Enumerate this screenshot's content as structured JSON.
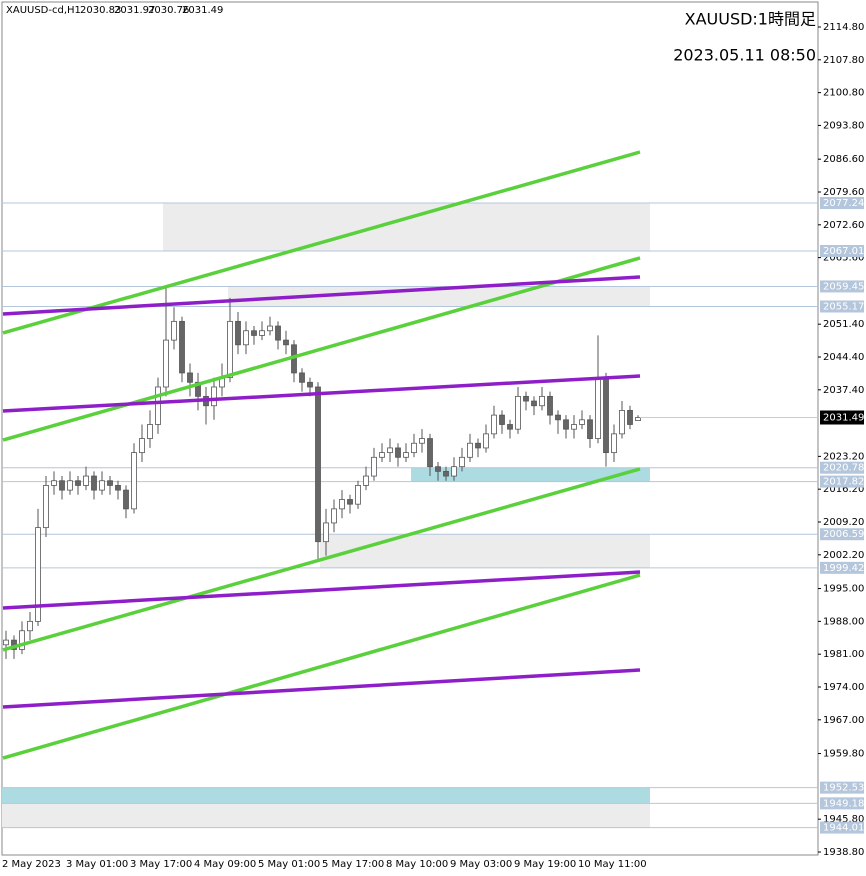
{
  "chart_data": {
    "type": "candlestick",
    "symbol": "XAUUSD-cd,H1",
    "title": "XAUUSD:1時間足",
    "subtitle": "2023.05.11 08:50",
    "categories": [
      "2 May 2023",
      null,
      null,
      null,
      null,
      null,
      null,
      null,
      "3 May 01:00",
      null,
      null,
      null,
      null,
      null,
      null,
      null,
      "3 May 17:00",
      null,
      null,
      null,
      null,
      null,
      null,
      null,
      "4 May 09:00",
      null,
      null,
      null,
      null,
      null,
      null,
      null,
      "5 May 01:00",
      null,
      null,
      null,
      null,
      null,
      null,
      null,
      "5 May 17:00",
      null,
      null,
      null,
      null,
      null,
      null,
      null,
      "8 May 10:00",
      null,
      null,
      null,
      null,
      null,
      null,
      null,
      "9 May 03:00",
      null,
      null,
      null,
      null,
      null,
      null,
      null,
      "9 May 19:00",
      null,
      null,
      null,
      null,
      null,
      null,
      null,
      "10 May 11:00",
      null,
      null,
      null,
      null,
      null,
      null,
      null
    ],
    "open": [
      1983,
      1984,
      1982,
      1986,
      1988,
      2008,
      2017,
      2018,
      2016,
      2018,
      2017,
      2019,
      2016,
      2018,
      2017,
      2016,
      2012,
      2024,
      2027,
      2030,
      2038,
      2048,
      2052,
      2041,
      2039,
      2036,
      2034,
      2038,
      2040,
      2052,
      2047,
      2050,
      2049,
      2050,
      2051,
      2048,
      2047,
      2041,
      2039,
      2038,
      2005,
      2009,
      2012,
      2014,
      2013,
      2017,
      2019,
      2023,
      2024,
      2025,
      2023,
      2024,
      2026,
      2027,
      2021,
      2020,
      2019,
      2021,
      2023,
      2026,
      2025,
      2028,
      2032,
      2030,
      2029,
      2036,
      2035,
      2034,
      2036,
      2032,
      2031,
      2029,
      2030,
      2031,
      2027,
      2040,
      2024,
      2028,
      2033,
      2030.83
    ],
    "high": [
      1986,
      1985,
      1988,
      1990,
      2012,
      2019,
      2020,
      2019,
      2020,
      2019,
      2021,
      2020,
      2020,
      2019,
      2018,
      2017,
      2026,
      2030,
      2033,
      2040,
      2059,
      2055,
      2053,
      2043,
      2041,
      2038,
      2040,
      2043,
      2057,
      2054,
      2052,
      2051,
      2052,
      2053,
      2052,
      2050,
      2048,
      2042,
      2040,
      2039,
      2012,
      2014,
      2016,
      2015,
      2018,
      2021,
      2025,
      2026,
      2027,
      2026,
      2026,
      2028,
      2029,
      2028,
      2022,
      2021,
      2023,
      2025,
      2028,
      2027,
      2030,
      2034,
      2033,
      2031,
      2038,
      2037,
      2036,
      2038,
      2037,
      2033,
      2032,
      2032,
      2033,
      2032,
      2049,
      2041,
      2030,
      2035,
      2034,
      2031.97
    ],
    "low": [
      1980,
      1980,
      1981,
      1984,
      1987,
      2006,
      2015,
      2014,
      2015,
      2015,
      2016,
      2014,
      2015,
      2015,
      2014,
      2010,
      2011,
      2022,
      2025,
      2028,
      2036,
      2046,
      2039,
      2036,
      2033,
      2030,
      2031,
      2036,
      2039,
      2045,
      2045,
      2047,
      2048,
      2049,
      2046,
      2045,
      2039,
      2037,
      2036,
      2001,
      2002,
      2007,
      2010,
      2011,
      2012,
      2016,
      2018,
      2022,
      2022,
      2021,
      2022,
      2023,
      2024,
      2019,
      2018,
      2018,
      2018,
      2020,
      2022,
      2023,
      2024,
      2027,
      2028,
      2027,
      2028,
      2033,
      2032,
      2033,
      2030,
      2028,
      2027,
      2027,
      2029,
      2025,
      2026,
      2021,
      2022,
      2027,
      2029,
      2030.76
    ],
    "close": [
      1984,
      1982,
      1986,
      1988,
      2008,
      2017,
      2018,
      2016,
      2018,
      2017,
      2019,
      2016,
      2018,
      2017,
      2016,
      2012,
      2024,
      2027,
      2030,
      2038,
      2048,
      2052,
      2041,
      2039,
      2036,
      2034,
      2038,
      2040,
      2052,
      2047,
      2050,
      2049,
      2050,
      2051,
      2048,
      2047,
      2041,
      2039,
      2038,
      2005,
      2009,
      2012,
      2014,
      2013,
      2017,
      2019,
      2023,
      2024,
      2025,
      2023,
      2024,
      2026,
      2027,
      2021,
      2020,
      2019,
      2021,
      2023,
      2026,
      2025,
      2028,
      2032,
      2030,
      2029,
      2036,
      2035,
      2034,
      2036,
      2032,
      2031,
      2029,
      2030,
      2031,
      2027,
      2040,
      2024,
      2028,
      2033,
      2030,
      2031.49
    ],
    "ylim": [
      1938.16,
      2120.13
    ],
    "yticks": [
      {
        "value": 2114.8,
        "label": "2114.80"
      },
      {
        "value": 2107.8,
        "label": "2107.80"
      },
      {
        "value": 2100.8,
        "label": "2100.80"
      },
      {
        "value": 2093.8,
        "label": "2093.80"
      },
      {
        "value": 2086.6,
        "label": "2086.60"
      },
      {
        "value": 2079.6,
        "label": "2079.60"
      },
      {
        "value": 2072.6,
        "label": "2072.60"
      },
      {
        "value": 2065.6,
        "label": "2065.60"
      },
      {
        "value": 2051.4,
        "label": "2051.40"
      },
      {
        "value": 2044.4,
        "label": "2044.40"
      },
      {
        "value": 2037.4,
        "label": "2037.40"
      },
      {
        "value": 2023.2,
        "label": "2023.20"
      },
      {
        "value": 2016.2,
        "label": "2016.20"
      },
      {
        "value": 2009.2,
        "label": "2009.20"
      },
      {
        "value": 2002.2,
        "label": "2002.20"
      },
      {
        "value": 1995,
        "label": "1995.00"
      },
      {
        "value": 1988,
        "label": "1988.00"
      },
      {
        "value": 1981,
        "label": "1981.00"
      },
      {
        "value": 1974,
        "label": "1974.00"
      },
      {
        "value": 1967,
        "label": "1967.00"
      },
      {
        "value": 1959.8,
        "label": "1959.80"
      },
      {
        "value": 1945.8,
        "label": "1945.80"
      },
      {
        "value": 1938.8,
        "label": "1938.80"
      }
    ],
    "levels": [
      2077.24,
      2067.01,
      2059.45,
      2055.17,
      2020.78,
      2017.82,
      2006.59,
      1999.42,
      1952.53,
      1949.18,
      1944.01
    ],
    "level_color": "#b4c6dc",
    "zones": [
      {
        "top": 2077.24,
        "bottom": 2067.01,
        "color": "#ececec"
      },
      {
        "top": 2059.45,
        "bottom": 2055.17,
        "color": "#ececec"
      },
      {
        "top": 2020.78,
        "bottom": 2017.82,
        "color": "#acdce2"
      },
      {
        "top": 2006.59,
        "bottom": 1999.42,
        "color": "#ececec"
      },
      {
        "top": 1952.53,
        "bottom": 1949.18,
        "color": "#acdce2"
      },
      {
        "top": 1949.18,
        "bottom": 1944.01,
        "color": "#ececec"
      }
    ],
    "trendlines": [
      {
        "color": "#5ad03c",
        "start": 2049.52,
        "end": 2088.13
      },
      {
        "color": "#5ad03c",
        "start": 2026.69,
        "end": 2065.52
      },
      {
        "color": "#5ad03c",
        "start": 1981.9,
        "end": 2020.51
      },
      {
        "color": "#5ad03c",
        "start": 1958.85,
        "end": 1997.89
      },
      {
        "color": "#8e1fc8",
        "start": 2053.57,
        "end": 2061.47
      },
      {
        "color": "#8e1fc8",
        "start": 2032.88,
        "end": 2040.35
      },
      {
        "color": "#8e1fc8",
        "start": 1990.85,
        "end": 1998.53
      },
      {
        "color": "#8e1fc8",
        "start": 1969.73,
        "end": 1977.63
      }
    ]
  }
}
